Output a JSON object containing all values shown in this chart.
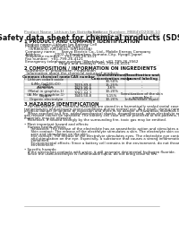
{
  "page_bg": "#ffffff",
  "header_top_left": "Product Name: Lithium Ion Battery Cell",
  "header_top_right": "Substance Number: MB84VD2008-10\nEstablishment / Revision: Dec 1, 2010",
  "title": "Safety data sheet for chemical products (SDS)",
  "section1_title": "1 PRODUCT AND COMPANY IDENTIFICATION",
  "section1_lines": [
    " Product name: Lithium Ion Battery Cell",
    " Product code: Cylindrical-type cell",
    "    (IVR86500, IVR18650, IVR18650A)",
    " Company name:     Sanyo Electric Co., Ltd., Mobile Energy Company",
    " Address:            2002-1  Kamitaikan, Sumoto-City, Hyogo, Japan",
    " Telephone number:   +81-799-26-4111",
    " Fax number:  +81-799-26-4121",
    " Emergency telephone number (Weekdays) +81-799-26-3562",
    "                               (Night and holidays) +81-799-26-4101"
  ],
  "section2_title": "2 COMPOSITION / INFORMATION ON INGREDIENTS",
  "section2_lines": [
    " Substance or preparation: Preparation",
    "  Information about the chemical nature of product:"
  ],
  "table_headers": [
    "Common chemical name",
    "CAS number",
    "Concentration /\nConcentration range",
    "Classification and\nhazard labeling"
  ],
  "table_rows": [
    [
      "Lithium cobalt oxide\n(LiMn-CoO4(LiO))",
      "-",
      "30-50%",
      "-"
    ],
    [
      "Iron",
      "7439-89-6",
      "15-25%",
      "-"
    ],
    [
      "Aluminum",
      "7429-90-5",
      "2-6%",
      "-"
    ],
    [
      "Graphite\n(Metal in graphite-1)\n(Al-Me on graphite-1)",
      "7782-42-5\n7782-44-7",
      "10-20%",
      "-"
    ],
    [
      "Copper",
      "7440-50-8",
      "5-15%",
      "Sensitization of the skin\ngroup No.2"
    ],
    [
      "Organic electrolyte",
      "-",
      "10-20%",
      "Inflammable liquid"
    ]
  ],
  "section3_title": "3 HAZARDS IDENTIFICATION",
  "section3_body": [
    "   For the battery cell, chemical materials are stored in a hermetically sealed metal case, designed to withstand",
    "temperatures and pressure-prone conditions during normal use. As a result, during normal use, there is no",
    "physical danger of ignition or explosion and there is no danger of hazardous materials leakage.",
    "   When exposed to a fire, added mechanical shocks, decompressed, when electrolyte releases by misuse, the",
    "gas release cannot be operated. The battery cell case will be protected at fire-patterns. Hazardous",
    "materials may be released.",
    "   Moreover, if heated strongly by the surrounding fire, toxic gas may be emitted.",
    "",
    "• Most important hazard and effects:",
    "   Human health effects:",
    "      Inhalation: The release of the electrolyte has an anaesthetic action and stimulates a respiratory tract.",
    "      Skin contact: The release of the electrolyte stimulates a skin. The electrolyte skin contact causes a",
    "      sore and stimulation on the skin.",
    "      Eye contact: The release of the electrolyte stimulates eyes. The electrolyte eye contact causes a sore",
    "      and stimulation on the eye. Especially, a substance that causes a strong inflammation of the eye is",
    "      contained.",
    "      Environmental effects: Since a battery cell remains in the environment, do not throw out it into the",
    "      environment.",
    "",
    "• Specific hazards:",
    "   If the electrolyte contacts with water, it will generate detrimental hydrogen fluoride.",
    "   Since the used-electrolyte is inflammable liquid, do not bring close to fire."
  ],
  "hdr_fontsize": 3.2,
  "title_fontsize": 5.8,
  "sec_fontsize": 3.8,
  "body_fontsize": 3.0,
  "tbl_fontsize": 2.8
}
